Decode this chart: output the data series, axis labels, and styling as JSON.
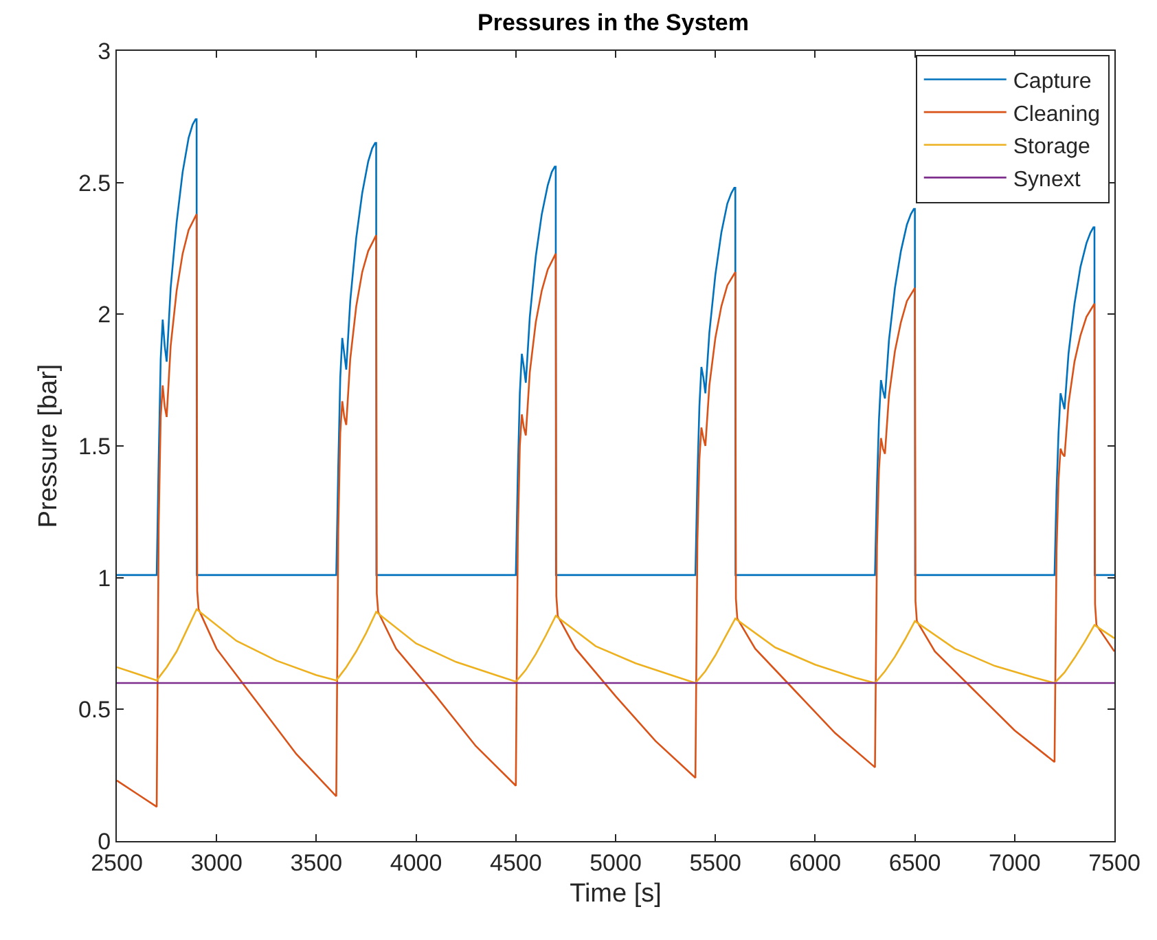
{
  "chart_data": {
    "type": "line",
    "title": "Pressures in the System",
    "xlabel": "Time [s]",
    "ylabel": "Pressure [bar]",
    "xlim": [
      2500,
      7500
    ],
    "xticks": [
      2500,
      3000,
      3500,
      4000,
      4500,
      5000,
      5500,
      6000,
      6500,
      7000,
      7500
    ],
    "ylim": [
      0,
      3
    ],
    "yticks": [
      0,
      0.5,
      1,
      1.5,
      2,
      2.5,
      3
    ],
    "grid": false,
    "legend": "top right",
    "line_style": "solid",
    "marker": "none",
    "series": [
      {
        "name": "Capture",
        "color": "#0072bd",
        "x": [
          2500,
          2700,
          2710,
          2720,
          2730,
          2740,
          2750,
          2770,
          2800,
          2830,
          2860,
          2880,
          2895,
          2900,
          2901,
          3600,
          3610,
          3620,
          3630,
          3640,
          3650,
          3670,
          3700,
          3730,
          3760,
          3780,
          3795,
          3800,
          3801,
          4500,
          4510,
          4520,
          4530,
          4540,
          4550,
          4570,
          4600,
          4630,
          4660,
          4680,
          4695,
          4700,
          4701,
          5400,
          5410,
          5420,
          5430,
          5440,
          5450,
          5470,
          5500,
          5530,
          5560,
          5580,
          5595,
          5600,
          5601,
          6300,
          6310,
          6320,
          6330,
          6340,
          6350,
          6370,
          6400,
          6430,
          6460,
          6480,
          6495,
          6500,
          6501,
          7200,
          7210,
          7220,
          7230,
          7240,
          7250,
          7270,
          7300,
          7330,
          7360,
          7380,
          7395,
          7400,
          7401,
          7500
        ],
        "values": [
          1.01,
          1.01,
          1.45,
          1.83,
          1.98,
          1.88,
          1.82,
          2.1,
          2.35,
          2.54,
          2.67,
          2.72,
          2.74,
          2.74,
          1.01,
          1.01,
          1.42,
          1.76,
          1.91,
          1.85,
          1.79,
          2.05,
          2.29,
          2.46,
          2.58,
          2.63,
          2.65,
          2.65,
          1.01,
          1.01,
          1.4,
          1.7,
          1.85,
          1.8,
          1.74,
          1.99,
          2.22,
          2.38,
          2.49,
          2.54,
          2.56,
          2.56,
          1.01,
          1.01,
          1.38,
          1.65,
          1.8,
          1.76,
          1.7,
          1.93,
          2.15,
          2.31,
          2.42,
          2.46,
          2.48,
          2.48,
          1.01,
          1.01,
          1.35,
          1.6,
          1.75,
          1.71,
          1.68,
          1.9,
          2.1,
          2.24,
          2.34,
          2.38,
          2.4,
          2.4,
          1.01,
          1.01,
          1.33,
          1.55,
          1.7,
          1.67,
          1.64,
          1.85,
          2.04,
          2.18,
          2.27,
          2.31,
          2.33,
          2.33,
          1.01,
          1.01
        ]
      },
      {
        "name": "Cleaning",
        "color": "#d95319",
        "x": [
          2500,
          2600,
          2700,
          2710,
          2720,
          2730,
          2740,
          2750,
          2770,
          2800,
          2830,
          2860,
          2900,
          2903,
          2910,
          3000,
          3200,
          3400,
          3600,
          3610,
          3620,
          3630,
          3640,
          3650,
          3670,
          3700,
          3730,
          3760,
          3800,
          3803,
          3810,
          3900,
          4100,
          4300,
          4500,
          4510,
          4520,
          4530,
          4540,
          4550,
          4570,
          4600,
          4630,
          4660,
          4700,
          4703,
          4710,
          4800,
          5000,
          5200,
          5400,
          5410,
          5420,
          5430,
          5440,
          5450,
          5470,
          5500,
          5530,
          5560,
          5600,
          5603,
          5610,
          5700,
          5900,
          6100,
          6300,
          6310,
          6320,
          6330,
          6340,
          6350,
          6370,
          6400,
          6430,
          6460,
          6500,
          6503,
          6510,
          6600,
          6800,
          7000,
          7200,
          7210,
          7220,
          7230,
          7240,
          7250,
          7270,
          7300,
          7330,
          7360,
          7400,
          7403,
          7410,
          7500
        ],
        "values": [
          0.23,
          0.18,
          0.13,
          1.2,
          1.61,
          1.73,
          1.65,
          1.61,
          1.88,
          2.09,
          2.23,
          2.32,
          2.38,
          0.95,
          0.88,
          0.73,
          0.53,
          0.33,
          0.17,
          1.18,
          1.55,
          1.67,
          1.61,
          1.58,
          1.83,
          2.03,
          2.16,
          2.24,
          2.3,
          0.94,
          0.87,
          0.73,
          0.55,
          0.36,
          0.21,
          1.16,
          1.5,
          1.62,
          1.57,
          1.54,
          1.78,
          1.97,
          2.09,
          2.17,
          2.23,
          0.93,
          0.855,
          0.73,
          0.55,
          0.38,
          0.24,
          1.14,
          1.45,
          1.57,
          1.53,
          1.5,
          1.73,
          1.91,
          2.03,
          2.11,
          2.16,
          0.92,
          0.845,
          0.73,
          0.57,
          0.41,
          0.28,
          1.12,
          1.41,
          1.53,
          1.49,
          1.47,
          1.69,
          1.86,
          1.97,
          2.05,
          2.1,
          0.91,
          0.835,
          0.72,
          0.57,
          0.42,
          0.3,
          1.1,
          1.37,
          1.49,
          1.47,
          1.46,
          1.66,
          1.82,
          1.92,
          1.99,
          2.04,
          0.9,
          0.82,
          0.72
        ]
      },
      {
        "name": "Storage",
        "color": "#edb120",
        "x": [
          2500,
          2600,
          2700,
          2750,
          2800,
          2850,
          2900,
          3100,
          3300,
          3500,
          3600,
          3650,
          3700,
          3750,
          3800,
          4000,
          4200,
          4400,
          4500,
          4550,
          4600,
          4650,
          4700,
          4900,
          5100,
          5300,
          5400,
          5450,
          5500,
          5550,
          5600,
          5800,
          6000,
          6200,
          6300,
          6350,
          6400,
          6450,
          6500,
          6700,
          6900,
          7100,
          7200,
          7250,
          7300,
          7350,
          7400,
          7500
        ],
        "values": [
          0.66,
          0.635,
          0.61,
          0.66,
          0.72,
          0.8,
          0.88,
          0.76,
          0.685,
          0.63,
          0.61,
          0.66,
          0.72,
          0.79,
          0.87,
          0.75,
          0.68,
          0.63,
          0.605,
          0.65,
          0.71,
          0.78,
          0.855,
          0.74,
          0.675,
          0.625,
          0.6,
          0.645,
          0.705,
          0.775,
          0.845,
          0.735,
          0.67,
          0.62,
          0.6,
          0.645,
          0.7,
          0.765,
          0.835,
          0.73,
          0.665,
          0.62,
          0.6,
          0.64,
          0.695,
          0.755,
          0.82,
          0.77
        ]
      },
      {
        "name": "Synext",
        "color": "#7e2f8e",
        "x": [
          2500,
          7500
        ],
        "values": [
          0.6,
          0.6
        ]
      }
    ]
  }
}
